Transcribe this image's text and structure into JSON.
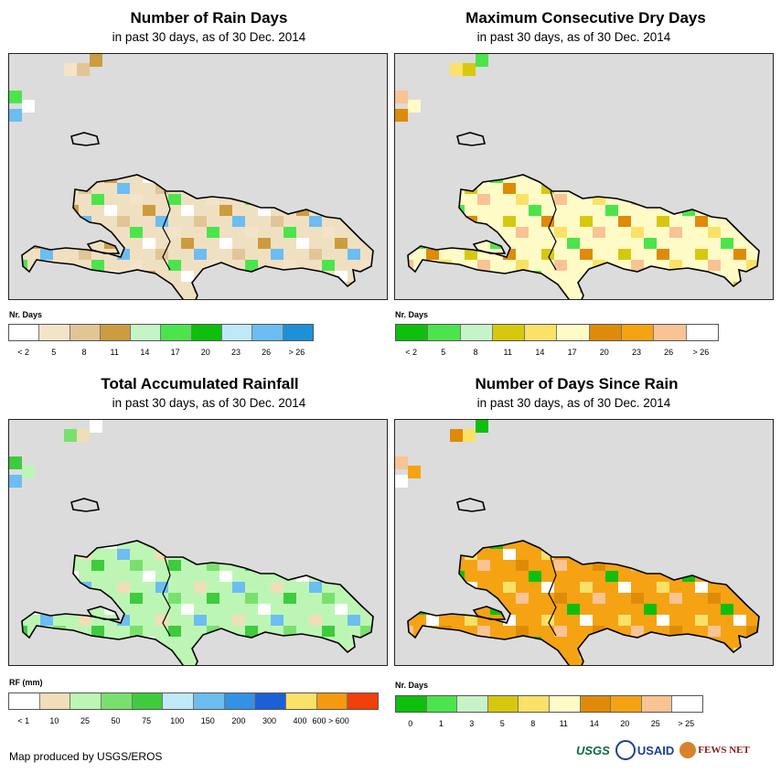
{
  "panels": [
    {
      "title": "Number of Rain Days",
      "subtitle": "in past 30 days, as of 30 Dec. 2014",
      "legend_title": "Nr. Days",
      "colors": [
        "#ffffff",
        "#f3e4c9",
        "#e1c595",
        "#cc9c3e",
        "#c6f4c6",
        "#4ce44c",
        "#0ebf0e",
        "#bfe9f9",
        "#6cbdf2",
        "#1e90d6"
      ],
      "labels": [
        "< 2",
        "5",
        "8",
        "11",
        "14",
        "17",
        "20",
        "23",
        "26",
        "> 26"
      ],
      "fill": "#f0e0c2",
      "palette": [
        "#ffffff",
        "#f3e4c9",
        "#e1c595",
        "#cc9c3e",
        "#4ce44c",
        "#6cbdf2"
      ]
    },
    {
      "title": "Maximum Consecutive Dry Days",
      "subtitle": "in past 30 days, as of 30 Dec. 2014",
      "legend_title": "Nr. Days",
      "colors": [
        "#0ebf0e",
        "#4ce44c",
        "#c6f4c6",
        "#d7c80f",
        "#fae168",
        "#fffbc6",
        "#de8b0a",
        "#f5a313",
        "#f9c394",
        "#ffffff"
      ],
      "labels": [
        "< 2",
        "5",
        "8",
        "11",
        "14",
        "17",
        "20",
        "23",
        "26",
        "> 26"
      ],
      "fill": "#fffbc6",
      "palette": [
        "#fffbc6",
        "#fae168",
        "#d7c80f",
        "#4ce44c",
        "#f9c394",
        "#de8b0a"
      ]
    },
    {
      "title": "Total Accumulated Rainfall",
      "subtitle": "in past 30 days, as of 30 Dec. 2014",
      "legend_title": "RF (mm)",
      "colors": [
        "#ffffff",
        "#f0deb8",
        "#bdf6b4",
        "#79e06e",
        "#3ecb3e",
        "#bfe9f9",
        "#6cbdf2",
        "#3391e6",
        "#1b60d6",
        "#fae168",
        "#f59a0e",
        "#f2400a"
      ],
      "labels": [
        "< 1",
        "10",
        "25",
        "50",
        "75",
        "100",
        "150",
        "200",
        "300",
        "400",
        "600 > 600"
      ],
      "fill": "#bdf6b4",
      "palette": [
        "#bdf6b4",
        "#79e06e",
        "#f0deb8",
        "#ffffff",
        "#3ecb3e",
        "#6cbdf2"
      ]
    },
    {
      "title": "Number of Days Since Rain",
      "subtitle": "in past 30 days, as of 30 Dec. 2014",
      "legend_title": "Nr. Days",
      "colors": [
        "#0ebf0e",
        "#4ce44c",
        "#c6f4c6",
        "#d7c80f",
        "#fae168",
        "#fffbc6",
        "#de8b0a",
        "#f5a313",
        "#f9c394",
        "#ffffff"
      ],
      "labels": [
        "0",
        "1",
        "3",
        "5",
        "8",
        "11",
        "14",
        "20",
        "25",
        "> 25"
      ],
      "fill": "#f5a313",
      "palette": [
        "#f5a313",
        "#de8b0a",
        "#fae168",
        "#0ebf0e",
        "#f9c394",
        "#ffffff"
      ]
    }
  ],
  "credit": "Map produced by USGS/EROS",
  "logos": [
    "USGS",
    "USAID",
    "FEWS NET"
  ]
}
